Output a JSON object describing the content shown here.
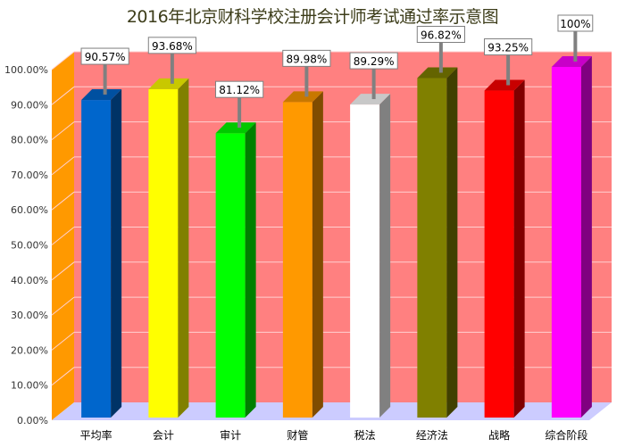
{
  "chart_data": {
    "type": "bar",
    "title": "2016年北京财科学校注册会计师考试通过率示意图",
    "xlabel": "",
    "ylabel": "",
    "categories": [
      "平均率",
      "会计",
      "审计",
      "财管",
      "税法",
      "经济法",
      "战略",
      "综合阶段"
    ],
    "values": [
      90.57,
      93.68,
      81.12,
      89.98,
      89.29,
      96.82,
      93.25,
      100
    ],
    "data_labels": [
      "90.57%",
      "93.68%",
      "81.12%",
      "89.98%",
      "89.29%",
      "96.82%",
      "93.25%",
      "100%"
    ],
    "bar_colors": [
      "#0066cc",
      "#ffff00",
      "#00ff00",
      "#ff9900",
      "#ffffff",
      "#808000",
      "#ff0000",
      "#ff00ff"
    ],
    "bar_side_colors": [
      "#003366",
      "#808000",
      "#008000",
      "#804c00",
      "#808080",
      "#404000",
      "#800000",
      "#800080"
    ],
    "bar_top_colors": [
      "#0050a0",
      "#c8c800",
      "#00c800",
      "#c87800",
      "#c8c8c8",
      "#646400",
      "#c80000",
      "#c800c8"
    ],
    "ylim": [
      0,
      100
    ],
    "yticks": [
      "0.00%",
      "10.00%",
      "20.00%",
      "30.00%",
      "40.00%",
      "50.00%",
      "60.00%",
      "70.00%",
      "80.00%",
      "90.00%",
      "100.00%"
    ],
    "grid": true,
    "legend": "none",
    "style": "3d-column",
    "colors": {
      "back_wall": "#ff8080",
      "side_wall": "#ff9900",
      "floor": "#ccccff",
      "gridline": "#ffd0d0",
      "label_leader": "#808080"
    }
  }
}
